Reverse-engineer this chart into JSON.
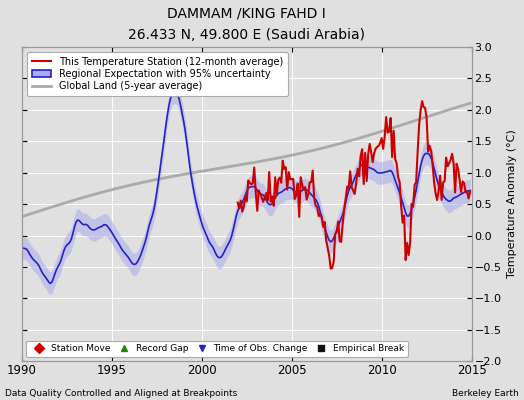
{
  "title": "DAMMAM /KING FAHD I",
  "subtitle": "26.433 N, 49.800 E (Saudi Arabia)",
  "ylabel": "Temperature Anomaly (°C)",
  "xlabel_left": "Data Quality Controlled and Aligned at Breakpoints",
  "xlabel_right": "Berkeley Earth",
  "ylim": [
    -2.0,
    3.0
  ],
  "xlim": [
    1990,
    2015
  ],
  "yticks": [
    -2,
    -1.5,
    -1,
    -0.5,
    0,
    0.5,
    1,
    1.5,
    2,
    2.5,
    3
  ],
  "xticks": [
    1990,
    1995,
    2000,
    2005,
    2010,
    2015
  ],
  "legend_line1": "This Temperature Station (12-month average)",
  "legend_line2": "Regional Expectation with 95% uncertainty",
  "legend_line3": "Global Land (5-year average)",
  "legend_markers": [
    {
      "label": "Station Move",
      "color": "#cc0000",
      "marker": "D"
    },
    {
      "label": "Record Gap",
      "color": "#228800",
      "marker": "^"
    },
    {
      "label": "Time of Obs. Change",
      "color": "#2222cc",
      "marker": "v"
    },
    {
      "label": "Empirical Break",
      "color": "#111111",
      "marker": "s"
    }
  ],
  "background_color": "#e0e0e0",
  "plot_background": "#e0e0e0",
  "red_line_color": "#cc0000",
  "blue_line_color": "#2222cc",
  "blue_fill_color": "#aaaaee",
  "gray_line_color": "#aaaaaa",
  "grid_color": "#ffffff"
}
